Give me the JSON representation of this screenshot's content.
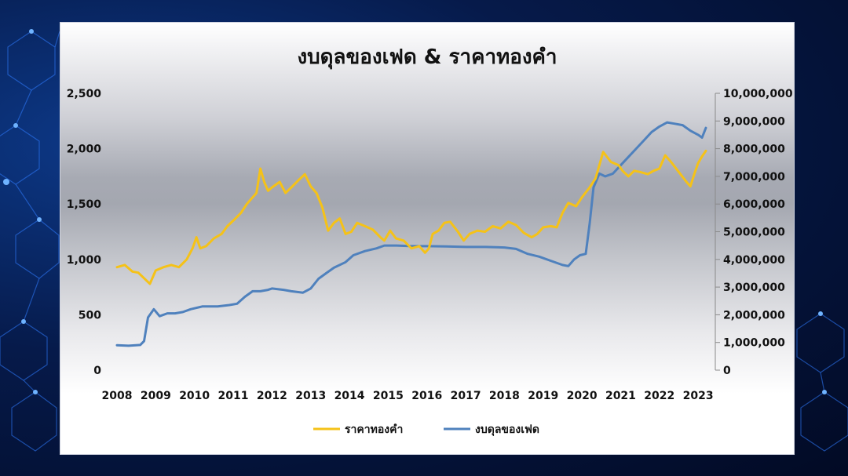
{
  "chart_data": {
    "type": "line",
    "title": "งบดุลของเฟด & ราคาทองคำ",
    "x_ticks": [
      "2008",
      "2009",
      "2010",
      "2011",
      "2012",
      "2013",
      "2014",
      "2015",
      "2016",
      "2017",
      "2018",
      "2019",
      "2020",
      "2021",
      "2022",
      "2023"
    ],
    "y_left": {
      "ticks": [
        "0",
        "500",
        "1,000",
        "1,500",
        "2,000",
        "2,500"
      ],
      "range": [
        0,
        2500
      ]
    },
    "y_right": {
      "ticks": [
        "0",
        "1,000,000",
        "2,000,000",
        "3,000,000",
        "4,000,000",
        "5,000,000",
        "6,000,000",
        "7,000,000",
        "8,000,000",
        "9,000,000",
        "10,000,000"
      ],
      "range": [
        0,
        10000000
      ]
    },
    "grid": false,
    "legend_position": "bottom",
    "colors": {
      "gold": "#f5c218",
      "fed": "#4f81bd"
    },
    "series": [
      {
        "name": "ราคาทองคำ",
        "axis": "left",
        "points": [
          [
            2008.0,
            930
          ],
          [
            2008.2,
            950
          ],
          [
            2008.4,
            890
          ],
          [
            2008.55,
            880
          ],
          [
            2008.7,
            830
          ],
          [
            2008.85,
            780
          ],
          [
            2009.0,
            900
          ],
          [
            2009.2,
            930
          ],
          [
            2009.4,
            950
          ],
          [
            2009.6,
            930
          ],
          [
            2009.8,
            1000
          ],
          [
            2009.95,
            1100
          ],
          [
            2010.05,
            1200
          ],
          [
            2010.15,
            1100
          ],
          [
            2010.3,
            1120
          ],
          [
            2010.5,
            1190
          ],
          [
            2010.7,
            1230
          ],
          [
            2010.85,
            1300
          ],
          [
            2011.0,
            1350
          ],
          [
            2011.2,
            1420
          ],
          [
            2011.35,
            1500
          ],
          [
            2011.5,
            1560
          ],
          [
            2011.6,
            1600
          ],
          [
            2011.7,
            1820
          ],
          [
            2011.8,
            1700
          ],
          [
            2011.9,
            1620
          ],
          [
            2012.0,
            1650
          ],
          [
            2012.2,
            1700
          ],
          [
            2012.35,
            1600
          ],
          [
            2012.5,
            1650
          ],
          [
            2012.7,
            1720
          ],
          [
            2012.85,
            1770
          ],
          [
            2013.0,
            1660
          ],
          [
            2013.15,
            1600
          ],
          [
            2013.3,
            1470
          ],
          [
            2013.45,
            1260
          ],
          [
            2013.6,
            1330
          ],
          [
            2013.75,
            1370
          ],
          [
            2013.9,
            1230
          ],
          [
            2014.05,
            1250
          ],
          [
            2014.2,
            1330
          ],
          [
            2014.4,
            1300
          ],
          [
            2014.6,
            1270
          ],
          [
            2014.8,
            1200
          ],
          [
            2014.9,
            1170
          ],
          [
            2015.05,
            1260
          ],
          [
            2015.2,
            1190
          ],
          [
            2015.4,
            1170
          ],
          [
            2015.6,
            1100
          ],
          [
            2015.8,
            1120
          ],
          [
            2015.95,
            1060
          ],
          [
            2016.05,
            1100
          ],
          [
            2016.15,
            1230
          ],
          [
            2016.3,
            1260
          ],
          [
            2016.45,
            1330
          ],
          [
            2016.6,
            1340
          ],
          [
            2016.8,
            1250
          ],
          [
            2016.95,
            1170
          ],
          [
            2017.1,
            1230
          ],
          [
            2017.3,
            1260
          ],
          [
            2017.5,
            1250
          ],
          [
            2017.7,
            1300
          ],
          [
            2017.9,
            1280
          ],
          [
            2018.1,
            1340
          ],
          [
            2018.3,
            1310
          ],
          [
            2018.5,
            1240
          ],
          [
            2018.7,
            1200
          ],
          [
            2018.85,
            1230
          ],
          [
            2019.0,
            1290
          ],
          [
            2019.2,
            1300
          ],
          [
            2019.35,
            1290
          ],
          [
            2019.5,
            1420
          ],
          [
            2019.65,
            1510
          ],
          [
            2019.85,
            1480
          ],
          [
            2020.0,
            1560
          ],
          [
            2020.2,
            1650
          ],
          [
            2020.35,
            1730
          ],
          [
            2020.55,
            1970
          ],
          [
            2020.75,
            1880
          ],
          [
            2020.95,
            1850
          ],
          [
            2021.05,
            1800
          ],
          [
            2021.2,
            1750
          ],
          [
            2021.35,
            1800
          ],
          [
            2021.5,
            1790
          ],
          [
            2021.7,
            1770
          ],
          [
            2021.85,
            1800
          ],
          [
            2022.0,
            1820
          ],
          [
            2022.15,
            1940
          ],
          [
            2022.3,
            1880
          ],
          [
            2022.5,
            1790
          ],
          [
            2022.7,
            1700
          ],
          [
            2022.8,
            1660
          ],
          [
            2022.9,
            1770
          ],
          [
            2023.0,
            1870
          ],
          [
            2023.1,
            1930
          ],
          [
            2023.2,
            1980
          ]
        ]
      },
      {
        "name": "งบดุลของเฟด",
        "axis": "right",
        "points": [
          [
            2008.0,
            900000
          ],
          [
            2008.3,
            880000
          ],
          [
            2008.6,
            910000
          ],
          [
            2008.7,
            1050000
          ],
          [
            2008.8,
            1900000
          ],
          [
            2008.95,
            2200000
          ],
          [
            2009.1,
            1950000
          ],
          [
            2009.3,
            2050000
          ],
          [
            2009.5,
            2050000
          ],
          [
            2009.7,
            2100000
          ],
          [
            2009.9,
            2200000
          ],
          [
            2010.2,
            2300000
          ],
          [
            2010.4,
            2300000
          ],
          [
            2010.6,
            2300000
          ],
          [
            2010.9,
            2350000
          ],
          [
            2011.1,
            2400000
          ],
          [
            2011.3,
            2650000
          ],
          [
            2011.5,
            2850000
          ],
          [
            2011.7,
            2850000
          ],
          [
            2011.9,
            2900000
          ],
          [
            2012.0,
            2950000
          ],
          [
            2012.3,
            2900000
          ],
          [
            2012.5,
            2850000
          ],
          [
            2012.8,
            2800000
          ],
          [
            2013.0,
            2950000
          ],
          [
            2013.2,
            3300000
          ],
          [
            2013.4,
            3500000
          ],
          [
            2013.6,
            3700000
          ],
          [
            2013.9,
            3900000
          ],
          [
            2014.1,
            4150000
          ],
          [
            2014.4,
            4300000
          ],
          [
            2014.7,
            4400000
          ],
          [
            2014.9,
            4500000
          ],
          [
            2015.2,
            4500000
          ],
          [
            2015.6,
            4480000
          ],
          [
            2016.0,
            4480000
          ],
          [
            2016.5,
            4470000
          ],
          [
            2017.0,
            4450000
          ],
          [
            2017.5,
            4450000
          ],
          [
            2018.0,
            4430000
          ],
          [
            2018.3,
            4380000
          ],
          [
            2018.6,
            4200000
          ],
          [
            2018.9,
            4100000
          ],
          [
            2019.2,
            3950000
          ],
          [
            2019.5,
            3800000
          ],
          [
            2019.65,
            3760000
          ],
          [
            2019.8,
            4000000
          ],
          [
            2019.95,
            4150000
          ],
          [
            2020.1,
            4200000
          ],
          [
            2020.2,
            5300000
          ],
          [
            2020.3,
            6600000
          ],
          [
            2020.45,
            7100000
          ],
          [
            2020.6,
            7000000
          ],
          [
            2020.8,
            7100000
          ],
          [
            2021.0,
            7400000
          ],
          [
            2021.2,
            7700000
          ],
          [
            2021.4,
            8000000
          ],
          [
            2021.6,
            8300000
          ],
          [
            2021.8,
            8600000
          ],
          [
            2022.0,
            8800000
          ],
          [
            2022.2,
            8950000
          ],
          [
            2022.4,
            8900000
          ],
          [
            2022.6,
            8850000
          ],
          [
            2022.8,
            8650000
          ],
          [
            2023.0,
            8500000
          ],
          [
            2023.1,
            8400000
          ],
          [
            2023.2,
            8750000
          ]
        ]
      }
    ]
  }
}
